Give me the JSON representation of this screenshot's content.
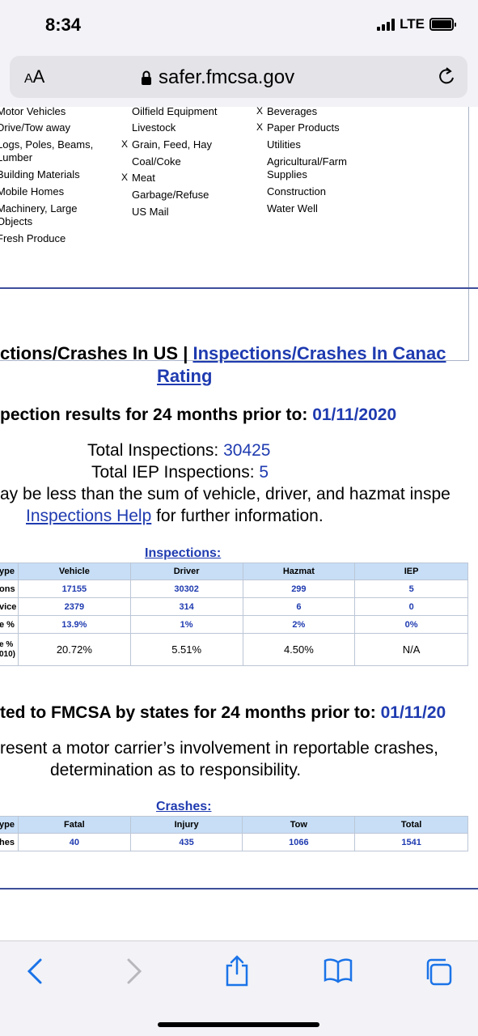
{
  "status": {
    "time": "8:34",
    "network": "LTE"
  },
  "browser": {
    "text_size": "AA",
    "url": "safer.fmcsa.gov"
  },
  "cargo": {
    "col1": [
      {
        "label": "Motor Vehicles",
        "x": false
      },
      {
        "label": "Drive/Tow away",
        "x": false
      },
      {
        "label": "Logs, Poles, Beams,",
        "x": false
      },
      {
        "label": "Lumber",
        "x": false
      },
      {
        "label": "Building Materials",
        "x": false
      },
      {
        "label": "Mobile Homes",
        "x": false
      },
      {
        "label": "Machinery, Large",
        "x": false
      },
      {
        "label": "Objects",
        "x": false
      },
      {
        "label": "Fresh Produce",
        "x": false
      }
    ],
    "col2": [
      {
        "label": "Oilfield Equipment",
        "x": false
      },
      {
        "label": "Livestock",
        "x": false
      },
      {
        "label": "Grain, Feed, Hay",
        "x": true
      },
      {
        "label": "Coal/Coke",
        "x": false
      },
      {
        "label": "Meat",
        "x": true
      },
      {
        "label": "Garbage/Refuse",
        "x": false
      },
      {
        "label": "US Mail",
        "x": false
      }
    ],
    "col3": [
      {
        "label": "Beverages",
        "x": true
      },
      {
        "label": "Paper Products",
        "x": true
      },
      {
        "label": "Utilities",
        "x": false
      },
      {
        "label": "Agricultural/Farm",
        "x": false
      },
      {
        "label": "Supplies",
        "x": false
      },
      {
        "label": "Construction",
        "x": false
      },
      {
        "label": "Water Well",
        "x": false
      }
    ],
    "x_mark": "X"
  },
  "nav": {
    "left": "ctions/Crashes In US",
    "sep": " | ",
    "canada": "Inspections/Crashes In Canac",
    "rating": "Rating"
  },
  "inspections": {
    "intro": "pection results for 24 months prior to: ",
    "date": "01/11/2020",
    "total_label": "Total Inspections: ",
    "total": "30425",
    "iep_label": "Total IEP Inspections: ",
    "iep": "5",
    "note": "ay be less than the sum of vehicle, driver, and hazmat inspe",
    "help_link": "Inspections Help",
    "help_rest": " for further information.",
    "caption": "Inspections:",
    "headers": [
      "ype",
      "Vehicle",
      "Driver",
      "Hazmat",
      "IEP"
    ],
    "rows": [
      [
        "ons",
        "17155",
        "30302",
        "299",
        "5"
      ],
      [
        "vice",
        "2379",
        "314",
        "6",
        "0"
      ],
      [
        "e %",
        "13.9%",
        "1%",
        "2%",
        "0%"
      ]
    ],
    "avg_row_label_1": "e %",
    "avg_row_label_2": "010)",
    "avg_row": [
      "20.72%",
      "5.51%",
      "4.50%",
      "N/A"
    ]
  },
  "crashes": {
    "intro": "ted to FMCSA by states for 24 months prior to: ",
    "date": "01/11/20",
    "note1": "resent a motor carrier’s involvement in reportable crashes,",
    "note2": "determination as to responsibility.",
    "caption": "Crashes:",
    "headers": [
      "ype",
      "Fatal",
      "Injury",
      "Tow",
      "Total"
    ],
    "row": [
      "hes",
      "40",
      "435",
      "1066",
      "1541"
    ]
  }
}
